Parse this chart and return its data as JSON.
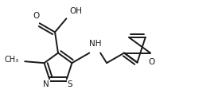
{
  "bg_color": "#ffffff",
  "line_color": "#1a1a1a",
  "lw": 1.4,
  "fs": 7.0,
  "figsize": [
    2.79,
    1.37
  ],
  "dpi": 100,
  "xlim": [
    0,
    2.79
  ],
  "ylim": [
    0,
    1.37
  ]
}
